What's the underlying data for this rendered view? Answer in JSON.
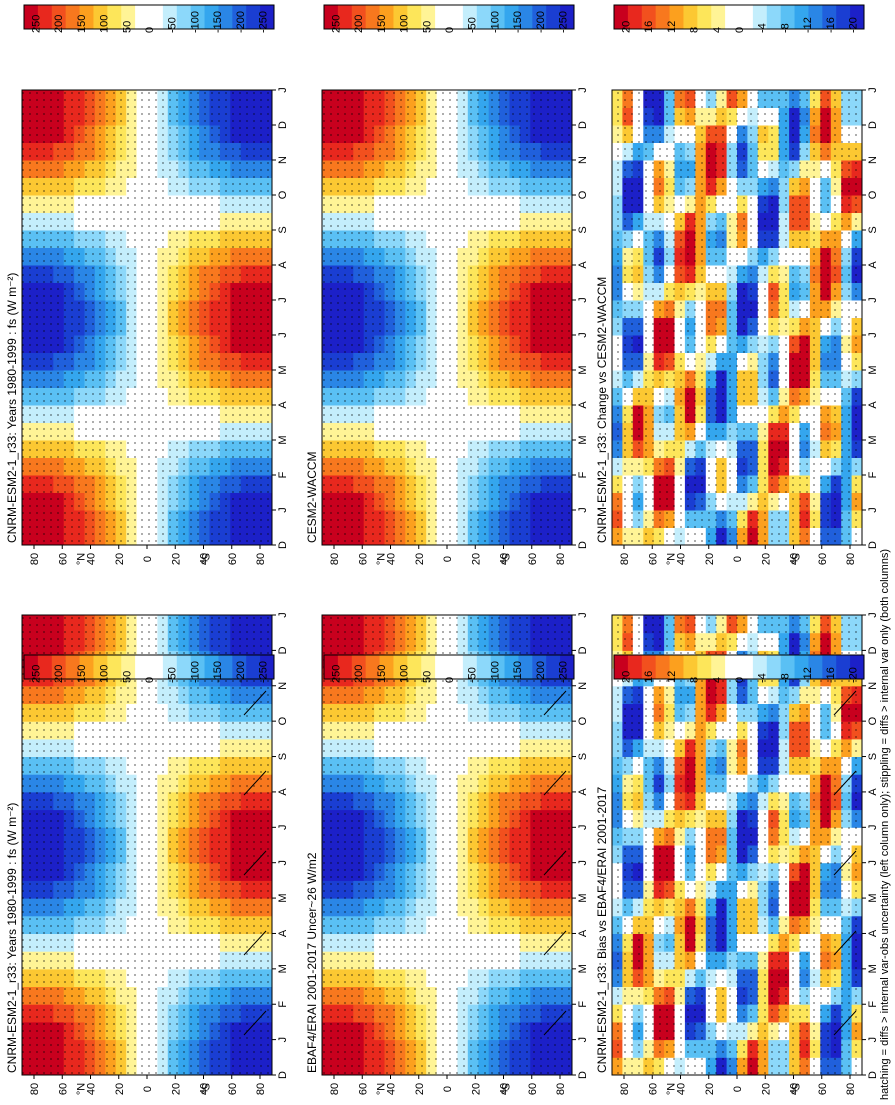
{
  "figure": {
    "footer_note": "hatching = diffs > internal var-obs uncertainty (left column only); stippling = diffs > internal var only (both columns)"
  },
  "chart_data": [
    {
      "type": "heatmap",
      "title": "CNRM-ESM2-1_r33: Years 1980-1999 : fs (W m⁻²)",
      "x_ticks": [
        "D",
        "J",
        "F",
        "M",
        "A",
        "M",
        "J",
        "J",
        "A",
        "S",
        "O",
        "N",
        "D",
        "J"
      ],
      "y_ticks": [
        "80",
        "60",
        "40",
        "20",
        "0",
        "20",
        "40",
        "60",
        "80"
      ],
      "y_hemis": [
        "°N",
        "°S"
      ],
      "colorbar": [
        "250",
        "200",
        "150",
        "100",
        "50",
        "0",
        "-50",
        "-100",
        "-150",
        "-200",
        "-250"
      ],
      "amplitude": 260,
      "hatching": true
    },
    {
      "type": "heatmap",
      "title": "CNRM-ESM2-1_r33: Years 1980-1999 : fs (W m⁻²)",
      "x_ticks": [
        "D",
        "J",
        "F",
        "M",
        "A",
        "M",
        "J",
        "J",
        "A",
        "S",
        "O",
        "N",
        "D",
        "J"
      ],
      "y_ticks": [
        "80",
        "60",
        "40",
        "20",
        "0",
        "20",
        "40",
        "60",
        "80"
      ],
      "y_hemis": [
        "°N",
        "°S"
      ],
      "colorbar": [
        "250",
        "200",
        "150",
        "100",
        "50",
        "0",
        "-50",
        "-100",
        "-150",
        "-200",
        "-250"
      ],
      "amplitude": 260,
      "hatching": false
    },
    {
      "type": "heatmap",
      "title": "EBAF4/ERAI 2001-2017 Uncer~26 W/m2",
      "x_ticks": [
        "D",
        "J",
        "F",
        "M",
        "A",
        "M",
        "J",
        "J",
        "A",
        "S",
        "O",
        "N",
        "D",
        "J"
      ],
      "y_ticks": [
        "80",
        "60",
        "40",
        "20",
        "0",
        "20",
        "40",
        "60",
        "80"
      ],
      "y_hemis": [
        "°N",
        "°S"
      ],
      "colorbar": [
        "250",
        "200",
        "150",
        "100",
        "50",
        "0",
        "-50",
        "-100",
        "-150",
        "-200",
        "-250"
      ],
      "amplitude": 260,
      "hatching": true
    },
    {
      "type": "heatmap",
      "title": "CESM2-WACCM",
      "x_ticks": [
        "D",
        "J",
        "F",
        "M",
        "A",
        "M",
        "J",
        "J",
        "A",
        "S",
        "O",
        "N",
        "D",
        "J"
      ],
      "y_ticks": [
        "80",
        "60",
        "40",
        "20",
        "0",
        "20",
        "40",
        "60",
        "80"
      ],
      "y_hemis": [
        "°N",
        "°S"
      ],
      "colorbar": [
        "250",
        "200",
        "150",
        "100",
        "50",
        "0",
        "-50",
        "-100",
        "-150",
        "-200",
        "-250"
      ],
      "amplitude": 260,
      "hatching": false
    },
    {
      "type": "heatmap",
      "title": "CNRM-ESM2-1_r33: Bias vs EBAF4/ERAI 2001-2017",
      "x_ticks": [
        "D",
        "J",
        "F",
        "M",
        "A",
        "M",
        "J",
        "J",
        "A",
        "S",
        "O",
        "N",
        "D",
        "J"
      ],
      "y_ticks": [
        "80",
        "60",
        "40",
        "20",
        "0",
        "20",
        "40",
        "60",
        "80"
      ],
      "y_hemis": [
        "°N",
        "°S"
      ],
      "colorbar": [
        "20",
        "16",
        "12",
        "8",
        "4",
        "0",
        "-4",
        "-8",
        "-12",
        "-16",
        "-20"
      ],
      "amplitude": 22,
      "hatching": true
    },
    {
      "type": "heatmap",
      "title": "CNRM-ESM2-1_r33: Change vs CESM2-WACCM",
      "x_ticks": [
        "D",
        "J",
        "F",
        "M",
        "A",
        "M",
        "J",
        "J",
        "A",
        "S",
        "O",
        "N",
        "D",
        "J"
      ],
      "y_ticks": [
        "80",
        "60",
        "40",
        "20",
        "0",
        "20",
        "40",
        "60",
        "80"
      ],
      "y_hemis": [
        "°N",
        "°S"
      ],
      "colorbar": [
        "20",
        "16",
        "12",
        "8",
        "4",
        "0",
        "-4",
        "-8",
        "-12",
        "-16",
        "-20"
      ],
      "amplitude": 22,
      "hatching": false
    }
  ]
}
